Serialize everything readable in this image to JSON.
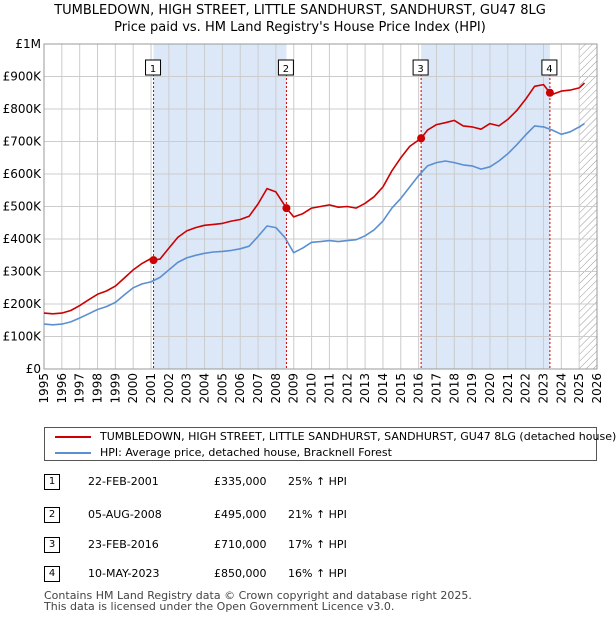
{
  "title_line1": "TUMBLEDOWN, HIGH STREET, LITTLE SANDHURST, SANDHURST, GU47 8LG",
  "title_line2": "Price paid vs. HM Land Registry's House Price Index (HPI)",
  "legend": {
    "red_label": "TUMBLEDOWN, HIGH STREET, LITTLE SANDHURST, SANDHURST, GU47 8LG (detached house)",
    "blue_label": "HPI: Average price, detached house, Bracknell Forest"
  },
  "colors": {
    "red": "#cc0000",
    "blue": "#5b8fd0",
    "shade": "#dce8f8",
    "grid": "#cccccc",
    "vline": "#cc0000"
  },
  "sales": [
    {
      "num": "1",
      "date": "22-FEB-2001",
      "price": "£335,000",
      "hpi": "25% ↑ HPI"
    },
    {
      "num": "2",
      "date": "05-AUG-2008",
      "price": "£495,000",
      "hpi": "21% ↑ HPI"
    },
    {
      "num": "3",
      "date": "23-FEB-2016",
      "price": "£710,000",
      "hpi": "17% ↑ HPI"
    },
    {
      "num": "4",
      "date": "10-MAY-2023",
      "price": "£850,000",
      "hpi": "16% ↑ HPI"
    }
  ],
  "footer": {
    "line1": "Contains HM Land Registry data © Crown copyright and database right 2025.",
    "line2": "This data is licensed under the Open Government Licence v3.0."
  },
  "chart_data": {
    "type": "line",
    "title": "TUMBLEDOWN, HIGH STREET, LITTLE SANDHURST, SANDHURST, GU47 8LG — Price paid vs. HM Land Registry's House Price Index (HPI)",
    "xlabel": "",
    "ylabel": "",
    "xlim": [
      1995,
      2026
    ],
    "ylim": [
      0,
      1000000
    ],
    "x_ticks": [
      1995,
      1996,
      1997,
      1998,
      1999,
      2000,
      2001,
      2002,
      2003,
      2004,
      2005,
      2006,
      2007,
      2008,
      2009,
      2010,
      2011,
      2012,
      2013,
      2014,
      2015,
      2016,
      2017,
      2018,
      2019,
      2020,
      2021,
      2022,
      2023,
      2024,
      2025,
      2026
    ],
    "y_ticks": [
      {
        "value": 0,
        "label": "£0"
      },
      {
        "value": 100000,
        "label": "£100K"
      },
      {
        "value": 200000,
        "label": "£200K"
      },
      {
        "value": 300000,
        "label": "£300K"
      },
      {
        "value": 400000,
        "label": "£400K"
      },
      {
        "value": 500000,
        "label": "£500K"
      },
      {
        "value": 600000,
        "label": "£600K"
      },
      {
        "value": 700000,
        "label": "£700K"
      },
      {
        "value": 800000,
        "label": "£800K"
      },
      {
        "value": 900000,
        "label": "£900K"
      },
      {
        "value": 1000000,
        "label": "£1M"
      }
    ],
    "grid": true,
    "shaded_regions": [
      [
        2001.14,
        2008.59
      ],
      [
        2016.14,
        2023.36
      ]
    ],
    "hatched_region": [
      2025.0,
      2026.0
    ],
    "series": [
      {
        "name": "TUMBLEDOWN, HIGH STREET, LITTLE SANDHURST, SANDHURST, GU47 8LG (detached house)",
        "color": "#cc0000",
        "x": [
          1995.0,
          1995.5,
          1996.0,
          1996.5,
          1997.0,
          1997.5,
          1998.0,
          1998.5,
          1999.0,
          1999.5,
          2000.0,
          2000.5,
          2001.0,
          2001.14,
          2001.5,
          2002.0,
          2002.5,
          2003.0,
          2003.5,
          2004.0,
          2004.5,
          2005.0,
          2005.5,
          2006.0,
          2006.5,
          2007.0,
          2007.5,
          2008.0,
          2008.59,
          2009.0,
          2009.5,
          2010.0,
          2010.5,
          2011.0,
          2011.5,
          2012.0,
          2012.5,
          2013.0,
          2013.5,
          2014.0,
          2014.5,
          2015.0,
          2015.5,
          2016.14,
          2016.5,
          2017.0,
          2017.5,
          2018.0,
          2018.5,
          2019.0,
          2019.5,
          2020.0,
          2020.5,
          2021.0,
          2021.5,
          2022.0,
          2022.5,
          2023.0,
          2023.36,
          2023.5,
          2024.0,
          2024.5,
          2025.0,
          2025.3
        ],
        "y": [
          172000,
          170000,
          172000,
          180000,
          195000,
          213000,
          230000,
          240000,
          255000,
          280000,
          305000,
          325000,
          340000,
          335000,
          338000,
          372000,
          405000,
          425000,
          435000,
          442000,
          445000,
          448000,
          455000,
          460000,
          470000,
          508000,
          555000,
          545000,
          495000,
          468000,
          478000,
          495000,
          500000,
          505000,
          498000,
          500000,
          495000,
          510000,
          530000,
          560000,
          610000,
          650000,
          685000,
          710000,
          735000,
          752000,
          758000,
          765000,
          748000,
          745000,
          738000,
          755000,
          748000,
          768000,
          795000,
          830000,
          870000,
          875000,
          850000,
          845000,
          855000,
          858000,
          865000,
          880000
        ]
      },
      {
        "name": "HPI: Average price, detached house, Bracknell Forest",
        "color": "#5b8fd0",
        "x": [
          1995.0,
          1995.5,
          1996.0,
          1996.5,
          1997.0,
          1997.5,
          1998.0,
          1998.5,
          1999.0,
          1999.5,
          2000.0,
          2000.5,
          2001.0,
          2001.5,
          2002.0,
          2002.5,
          2003.0,
          2003.5,
          2004.0,
          2004.5,
          2005.0,
          2005.5,
          2006.0,
          2006.5,
          2007.0,
          2007.5,
          2008.0,
          2008.5,
          2009.0,
          2009.5,
          2010.0,
          2010.5,
          2011.0,
          2011.5,
          2012.0,
          2012.5,
          2013.0,
          2013.5,
          2014.0,
          2014.5,
          2015.0,
          2015.5,
          2016.0,
          2016.5,
          2017.0,
          2017.5,
          2018.0,
          2018.5,
          2019.0,
          2019.5,
          2020.0,
          2020.5,
          2021.0,
          2021.5,
          2022.0,
          2022.5,
          2023.0,
          2023.5,
          2024.0,
          2024.5,
          2025.0,
          2025.3
        ],
        "y": [
          138000,
          136000,
          138000,
          145000,
          157000,
          170000,
          183000,
          192000,
          205000,
          228000,
          250000,
          262000,
          268000,
          282000,
          305000,
          328000,
          342000,
          350000,
          356000,
          360000,
          362000,
          365000,
          370000,
          378000,
          408000,
          440000,
          435000,
          405000,
          358000,
          372000,
          390000,
          392000,
          395000,
          392000,
          395000,
          398000,
          410000,
          428000,
          455000,
          495000,
          525000,
          560000,
          595000,
          625000,
          635000,
          640000,
          635000,
          628000,
          625000,
          615000,
          622000,
          640000,
          662000,
          690000,
          720000,
          748000,
          745000,
          735000,
          722000,
          730000,
          745000,
          755000
        ]
      }
    ],
    "sale_markers": [
      {
        "label": "1",
        "x": 2001.14,
        "y": 335000
      },
      {
        "label": "2",
        "x": 2008.59,
        "y": 495000
      },
      {
        "label": "3",
        "x": 2016.14,
        "y": 710000
      },
      {
        "label": "4",
        "x": 2023.36,
        "y": 850000
      }
    ]
  }
}
